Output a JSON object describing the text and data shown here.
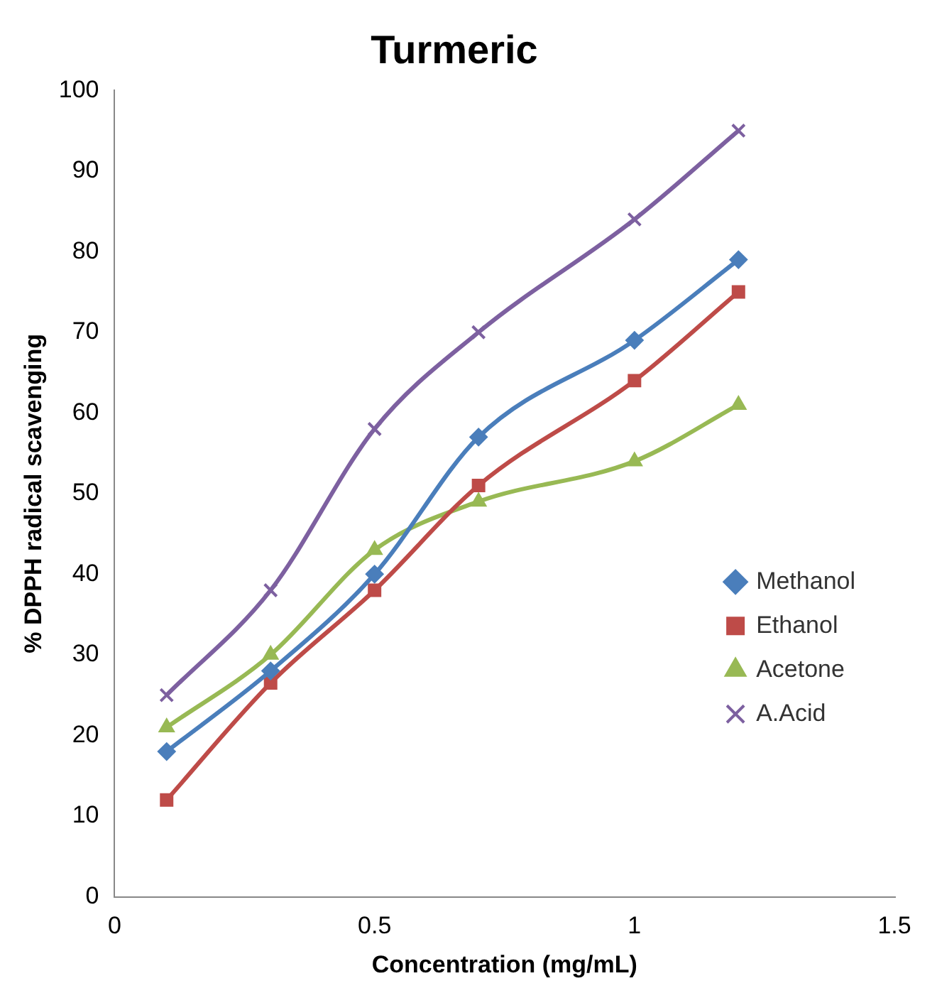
{
  "chart_data": {
    "type": "line",
    "title": "Turmeric",
    "xlabel": "Concentration (mg/mL)",
    "ylabel": "% DPPH radical scavenging",
    "x": [
      0.1,
      0.3,
      0.5,
      0.7,
      1.0,
      1.2
    ],
    "series": [
      {
        "name": "Methanol",
        "color": "#4a7ebb",
        "marker": "diamond",
        "values": [
          18,
          28,
          40,
          57,
          69,
          79
        ]
      },
      {
        "name": "Ethanol",
        "color": "#be4b48",
        "marker": "square",
        "values": [
          12,
          26.5,
          38,
          51,
          64,
          75
        ]
      },
      {
        "name": "Acetone",
        "color": "#98b954",
        "marker": "triangle",
        "values": [
          21,
          30,
          43,
          49,
          54,
          61
        ]
      },
      {
        "name": "A.Acid",
        "color": "#7d60a0",
        "marker": "cross",
        "values": [
          25,
          38,
          58,
          70,
          84,
          95
        ]
      }
    ],
    "xlim": [
      0,
      1.5
    ],
    "xticks": [
      0,
      0.5,
      1,
      1.5
    ],
    "ylim": [
      0,
      100
    ],
    "yticks": [
      0,
      10,
      20,
      30,
      40,
      50,
      60,
      70,
      80,
      90,
      100
    ],
    "grid": false,
    "legend": "right"
  }
}
